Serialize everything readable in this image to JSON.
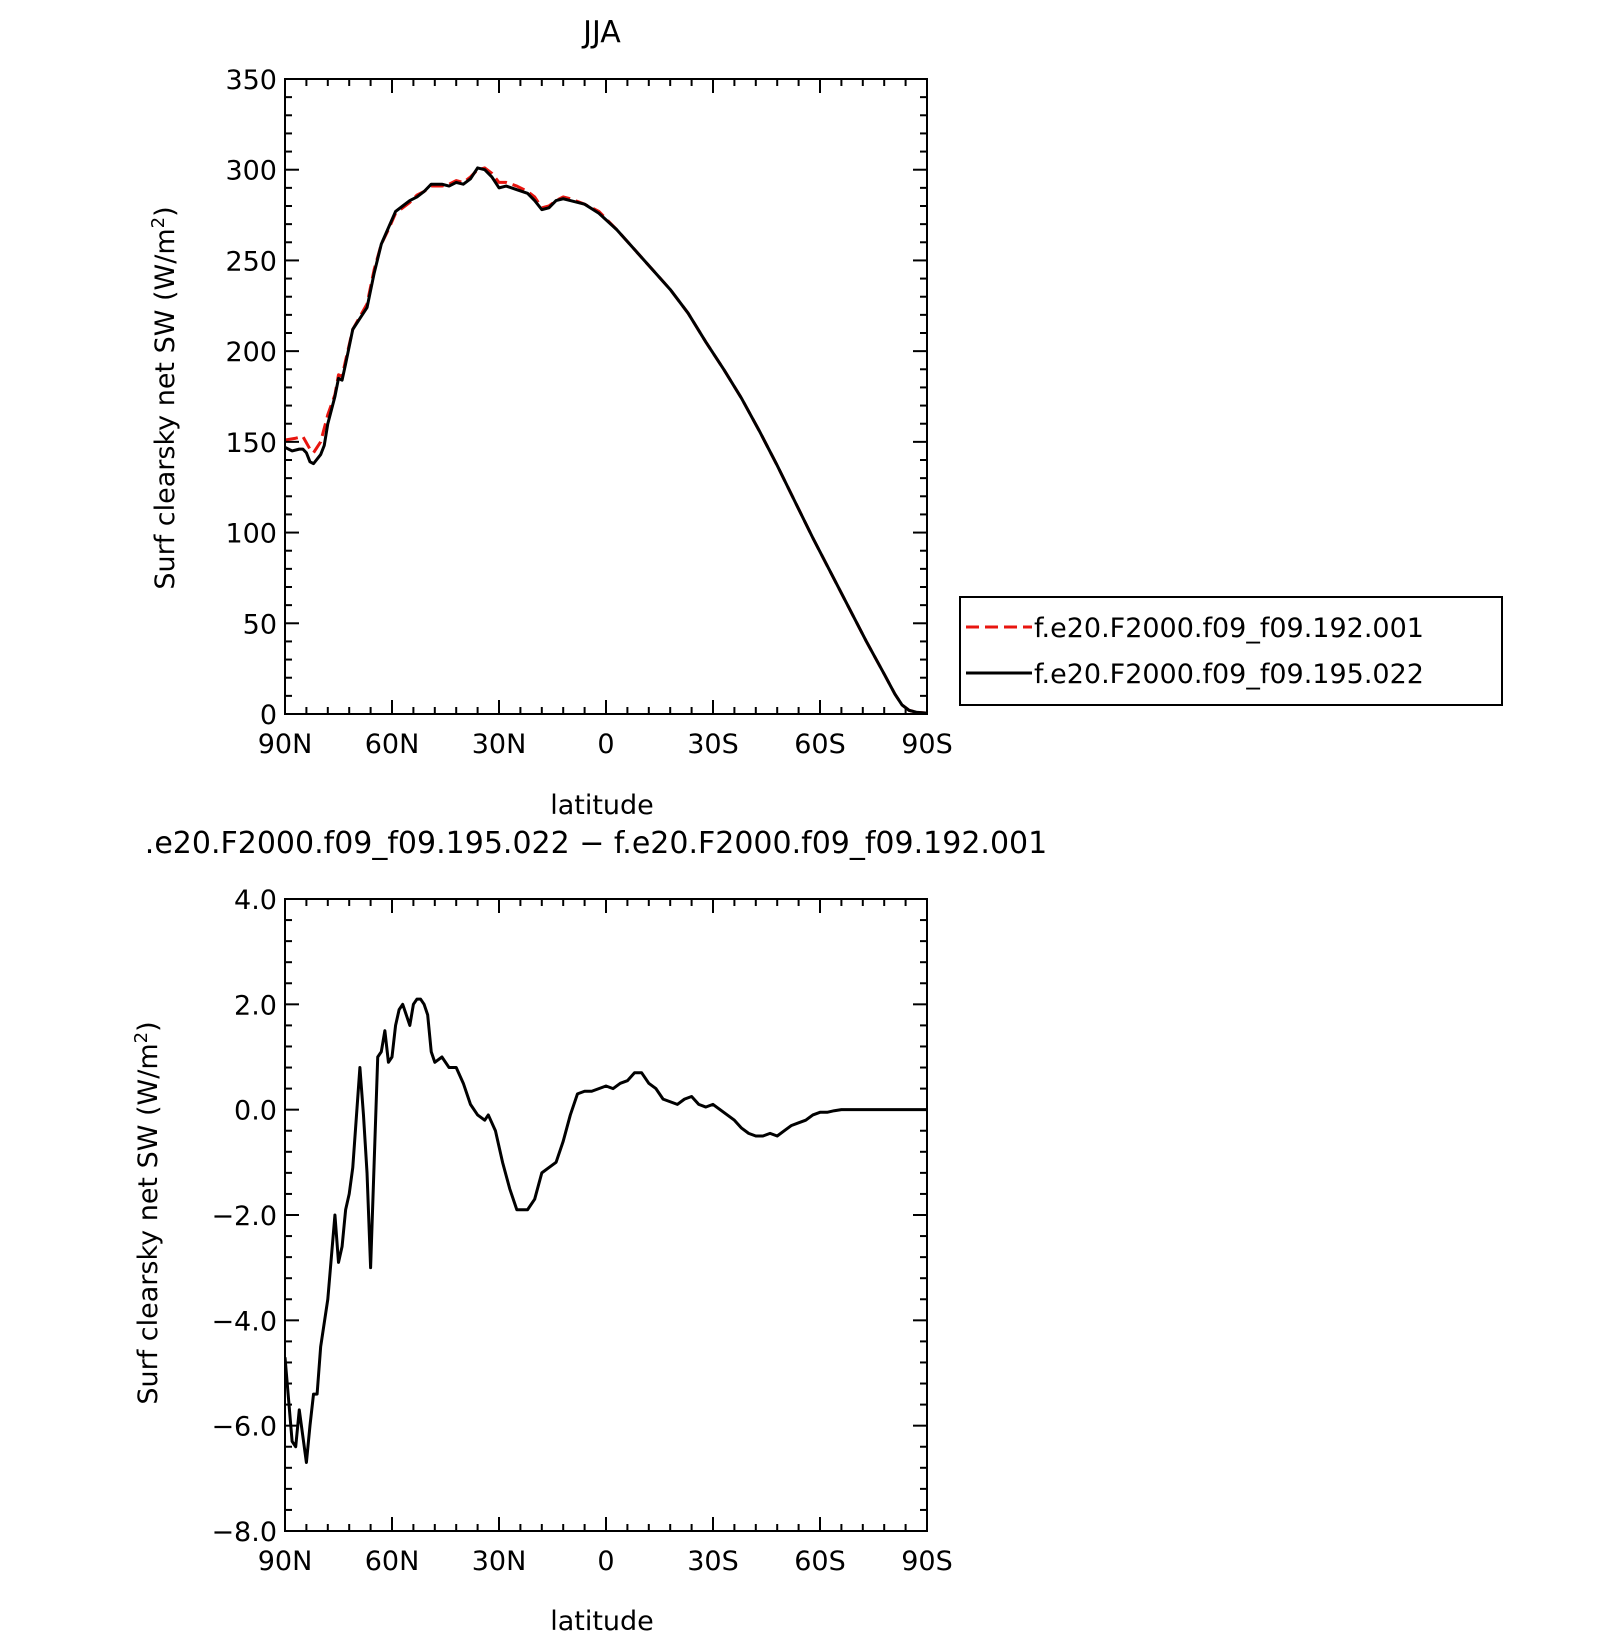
{
  "chart_data": [
    {
      "type": "line",
      "title": "JJA",
      "xlabel": "latitude",
      "ylabel": "Surf clearsky net SW (W/m",
      "ylabel_sup": "2",
      "ylabel_end": ")",
      "xlim": [
        90,
        -90
      ],
      "ylim": [
        0,
        350
      ],
      "x_ticks": [
        90,
        60,
        30,
        0,
        -30,
        -60,
        -90
      ],
      "x_tick_labels": [
        "90N",
        "60N",
        "30N",
        "0",
        "30S",
        "60S",
        "90S"
      ],
      "y_ticks": [
        0,
        50,
        100,
        150,
        200,
        250,
        300,
        350
      ],
      "y_tick_labels": [
        "0",
        "50",
        "100",
        "150",
        "200",
        "250",
        "300",
        "350"
      ],
      "grid": false,
      "legend": "right",
      "series": [
        {
          "name": "f.e20.F2000.f09_f09.192.001",
          "color": "#e8150f",
          "dash": true,
          "points": [
            [
              90,
              151
            ],
            [
              87,
              152
            ],
            [
              85,
              153
            ],
            [
              83,
              146
            ],
            [
              82,
              144
            ],
            [
              80,
              150
            ],
            [
              78,
              165
            ],
            [
              76,
              176
            ],
            [
              75,
              187
            ],
            [
              74,
              186
            ],
            [
              73,
              195
            ],
            [
              71,
              212
            ],
            [
              69,
              219
            ],
            [
              67,
              226
            ],
            [
              65,
              245
            ],
            [
              63,
              259
            ],
            [
              61,
              267
            ],
            [
              59,
              276
            ],
            [
              57,
              279
            ],
            [
              55,
              282
            ],
            [
              53,
              286
            ],
            [
              51,
              288
            ],
            [
              49,
              291
            ],
            [
              46,
              291
            ],
            [
              44,
              292
            ],
            [
              42,
              294
            ],
            [
              40,
              293
            ],
            [
              38,
              296
            ],
            [
              36,
              300
            ],
            [
              34,
              301
            ],
            [
              32,
              298
            ],
            [
              30,
              293
            ],
            [
              28,
              293
            ],
            [
              25,
              291
            ],
            [
              22,
              288
            ],
            [
              20,
              285
            ],
            [
              18,
              279
            ],
            [
              16,
              280
            ],
            [
              14,
              283
            ],
            [
              12,
              285
            ],
            [
              10,
              284
            ],
            [
              6,
              281
            ],
            [
              2,
              277
            ],
            [
              -3,
              267
            ],
            [
              -8,
              256
            ],
            [
              -13,
              245
            ],
            [
              -18,
              234
            ],
            [
              -23,
              221
            ],
            [
              -28,
              205
            ],
            [
              -33,
              190
            ],
            [
              -38,
              174
            ],
            [
              -43,
              156
            ],
            [
              -48,
              137
            ],
            [
              -53,
              117
            ],
            [
              -58,
              97
            ],
            [
              -63,
              78
            ],
            [
              -68,
              59
            ],
            [
              -73,
              40
            ],
            [
              -78,
              22
            ],
            [
              -81,
              11
            ],
            [
              -83,
              5
            ],
            [
              -85,
              2
            ],
            [
              -87,
              1
            ],
            [
              -90,
              0.5
            ],
            [
              -93,
              0
            ],
            [
              -101,
              0
            ]
          ]
        },
        {
          "name": "f.e20.F2000.f09_f09.195.022",
          "color": "#000000",
          "dash": false,
          "points": [
            [
              90,
              147
            ],
            [
              88,
              145
            ],
            [
              86,
              146
            ],
            [
              85,
              146
            ],
            [
              84,
              144
            ],
            [
              83,
              139
            ],
            [
              82,
              138
            ],
            [
              80,
              143
            ],
            [
              79,
              148
            ],
            [
              78,
              160
            ],
            [
              76,
              175
            ],
            [
              75,
              185
            ],
            [
              74,
              184
            ],
            [
              73,
              193
            ],
            [
              71,
              212
            ],
            [
              69,
              218
            ],
            [
              67,
              224
            ],
            [
              65,
              243
            ],
            [
              63,
              259
            ],
            [
              61,
              268
            ],
            [
              59,
              277
            ],
            [
              57,
              280
            ],
            [
              55,
              283
            ],
            [
              53,
              285
            ],
            [
              51,
              288
            ],
            [
              49,
              292
            ],
            [
              46,
              292
            ],
            [
              44,
              291
            ],
            [
              42,
              293
            ],
            [
              40,
              292
            ],
            [
              38,
              295
            ],
            [
              36,
              301
            ],
            [
              34,
              300
            ],
            [
              32,
              296
            ],
            [
              30,
              290
            ],
            [
              28,
              291
            ],
            [
              25,
              289
            ],
            [
              22,
              287
            ],
            [
              20,
              283
            ],
            [
              18,
              278
            ],
            [
              16,
              279
            ],
            [
              14,
              283
            ],
            [
              12,
              284
            ],
            [
              10,
              283
            ],
            [
              6,
              281
            ],
            [
              2,
              276
            ],
            [
              -3,
              267
            ],
            [
              -8,
              256
            ],
            [
              -13,
              245
            ],
            [
              -18,
              234
            ],
            [
              -23,
              221
            ],
            [
              -28,
              205
            ],
            [
              -33,
              190
            ],
            [
              -38,
              174
            ],
            [
              -43,
              156
            ],
            [
              -48,
              137
            ],
            [
              -53,
              117
            ],
            [
              -58,
              97
            ],
            [
              -63,
              78
            ],
            [
              -68,
              59
            ],
            [
              -73,
              40
            ],
            [
              -78,
              22
            ],
            [
              -81,
              11
            ],
            [
              -83,
              5
            ],
            [
              -85,
              2
            ],
            [
              -87,
              1
            ],
            [
              -90,
              0.5
            ],
            [
              -93,
              0
            ],
            [
              -101,
              0
            ]
          ]
        }
      ]
    },
    {
      "type": "line",
      "title": ".e20.F2000.f09_f09.195.022 − f.e20.F2000.f09_f09.192.001",
      "xlabel": "latitude",
      "ylabel": "Surf clearsky net SW (W/m",
      "ylabel_sup": "2",
      "ylabel_end": ")",
      "xlim": [
        90,
        -90
      ],
      "ylim": [
        -8,
        4
      ],
      "x_ticks": [
        90,
        60,
        30,
        0,
        -30,
        -60,
        -90
      ],
      "x_tick_labels": [
        "90N",
        "60N",
        "30N",
        "0",
        "30S",
        "60S",
        "90S"
      ],
      "y_ticks": [
        -8,
        -6,
        -4,
        -2,
        0,
        2,
        4
      ],
      "y_tick_labels": [
        "−8.0",
        "−6.0",
        "−4.0",
        "−2.0",
        "0.0",
        "2.0",
        "4.0"
      ],
      "grid": false,
      "series": [
        {
          "color": "#000000",
          "dash": false,
          "points": [
            [
              90,
              -4.7
            ],
            [
              89,
              -5.5
            ],
            [
              88,
              -6.3
            ],
            [
              87,
              -6.4
            ],
            [
              86,
              -5.7
            ],
            [
              85,
              -6.2
            ],
            [
              84,
              -6.7
            ],
            [
              83,
              -6.0
            ],
            [
              82,
              -5.4
            ],
            [
              81,
              -5.4
            ],
            [
              80,
              -4.5
            ],
            [
              78,
              -3.6
            ],
            [
              76,
              -2.0
            ],
            [
              75,
              -2.9
            ],
            [
              74,
              -2.6
            ],
            [
              73,
              -1.9
            ],
            [
              72,
              -1.6
            ],
            [
              71,
              -1.1
            ],
            [
              69,
              0.8
            ],
            [
              68,
              -0.1
            ],
            [
              67,
              -1.2
            ],
            [
              66,
              -3.0
            ],
            [
              65,
              -1.0
            ],
            [
              64,
              1.0
            ],
            [
              63,
              1.1
            ],
            [
              62,
              1.5
            ],
            [
              61,
              0.9
            ],
            [
              60,
              1.0
            ],
            [
              59,
              1.6
            ],
            [
              58,
              1.9
            ],
            [
              57,
              2.0
            ],
            [
              56,
              1.8
            ],
            [
              55,
              1.6
            ],
            [
              54,
              2.0
            ],
            [
              53,
              2.1
            ],
            [
              52,
              2.1
            ],
            [
              51,
              2.0
            ],
            [
              50,
              1.8
            ],
            [
              49,
              1.1
            ],
            [
              48,
              0.9
            ],
            [
              46,
              1.0
            ],
            [
              44,
              0.8
            ],
            [
              42,
              0.8
            ],
            [
              40,
              0.5
            ],
            [
              38,
              0.1
            ],
            [
              36,
              -0.1
            ],
            [
              34,
              -0.2
            ],
            [
              33,
              -0.1
            ],
            [
              31,
              -0.4
            ],
            [
              29,
              -1.0
            ],
            [
              27,
              -1.5
            ],
            [
              25,
              -1.9
            ],
            [
              24,
              -1.9
            ],
            [
              22,
              -1.9
            ],
            [
              20,
              -1.7
            ],
            [
              18,
              -1.2
            ],
            [
              16,
              -1.1
            ],
            [
              14,
              -1.0
            ],
            [
              12,
              -0.6
            ],
            [
              10,
              -0.1
            ],
            [
              8,
              0.3
            ],
            [
              6,
              0.35
            ],
            [
              4,
              0.35
            ],
            [
              2,
              0.4
            ],
            [
              0,
              0.45
            ],
            [
              -2,
              0.4
            ],
            [
              -4,
              0.5
            ],
            [
              -6,
              0.55
            ],
            [
              -8,
              0.7
            ],
            [
              -10,
              0.7
            ],
            [
              -12,
              0.5
            ],
            [
              -14,
              0.4
            ],
            [
              -16,
              0.2
            ],
            [
              -18,
              0.15
            ],
            [
              -20,
              0.1
            ],
            [
              -22,
              0.2
            ],
            [
              -24,
              0.25
            ],
            [
              -26,
              0.1
            ],
            [
              -28,
              0.05
            ],
            [
              -30,
              0.1
            ],
            [
              -32,
              0.0
            ],
            [
              -34,
              -0.1
            ],
            [
              -36,
              -0.2
            ],
            [
              -38,
              -0.35
            ],
            [
              -40,
              -0.45
            ],
            [
              -42,
              -0.5
            ],
            [
              -44,
              -0.5
            ],
            [
              -46,
              -0.45
            ],
            [
              -48,
              -0.5
            ],
            [
              -50,
              -0.4
            ],
            [
              -52,
              -0.3
            ],
            [
              -54,
              -0.25
            ],
            [
              -56,
              -0.2
            ],
            [
              -58,
              -0.1
            ],
            [
              -60,
              -0.05
            ],
            [
              -62,
              -0.05
            ],
            [
              -64,
              -0.02
            ],
            [
              -66,
              0.0
            ],
            [
              -70,
              0.0
            ],
            [
              -80,
              0.0
            ],
            [
              -90,
              0.0
            ]
          ]
        }
      ]
    }
  ]
}
